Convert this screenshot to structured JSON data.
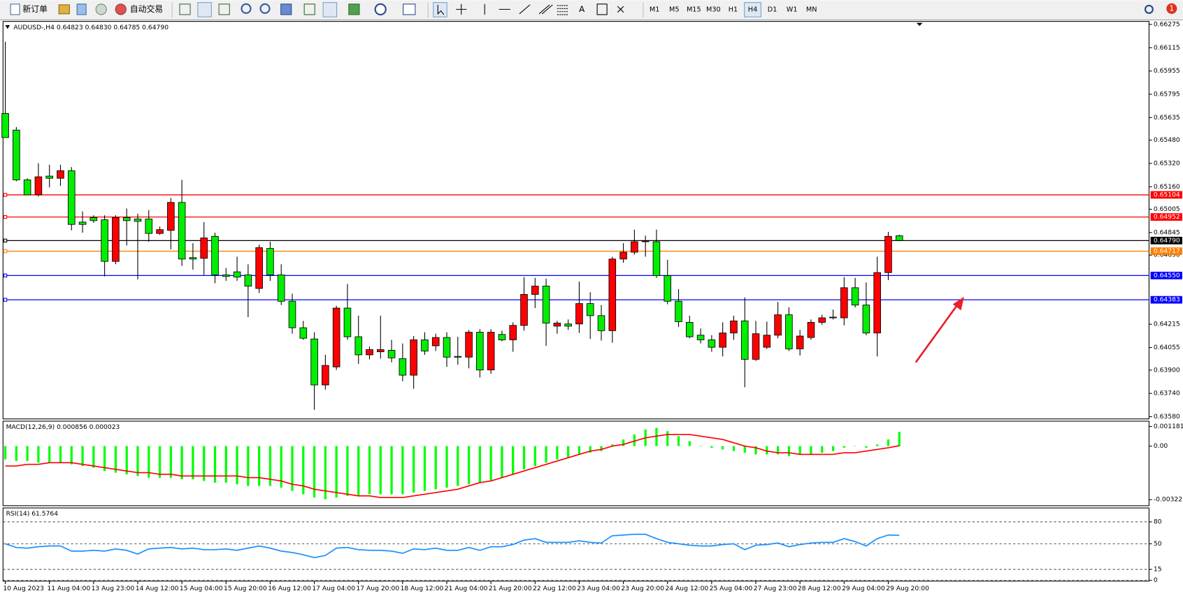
{
  "toolbar": {
    "new_order": "新订单",
    "auto_trading": "自动交易",
    "text_tool": "A",
    "timeframes": [
      "M1",
      "M5",
      "M15",
      "M30",
      "H1",
      "H4",
      "D1",
      "W1",
      "MN"
    ],
    "notifications": 1
  },
  "chart_data": [
    {
      "type": "candlestick",
      "title": "AUDUSD-,H4  0.64823 0.64830 0.64785 0.64790",
      "up_color": "#ff0000",
      "down_color": "#00ee00",
      "categories": [
        "10 Aug 2023",
        null,
        null,
        null,
        "11 Aug 04:00",
        null,
        null,
        null,
        "13 Aug 23:00",
        null,
        null,
        null,
        "14 Aug 12:00",
        null,
        null,
        null,
        "15 Aug 04:00",
        null,
        null,
        null,
        "15 Aug 20:00",
        null,
        null,
        null,
        "16 Aug 12:00",
        null,
        null,
        null,
        "17 Aug 04:00",
        null,
        null,
        null,
        "17 Aug 20:00",
        null,
        null,
        null,
        "18 Aug 12:00",
        null,
        null,
        null,
        "21 Aug 04:00",
        null,
        null,
        null,
        "21 Aug 20:00",
        null,
        null,
        null,
        "22 Aug 12:00",
        null,
        null,
        null,
        "23 Aug 04:00",
        null,
        null,
        null,
        "23 Aug 20:00",
        null,
        null,
        null,
        "24 Aug 12:00",
        null,
        null,
        null,
        "25 Aug 04:00",
        null,
        null,
        null,
        "27 Aug 23:00",
        null,
        null,
        null,
        "28 Aug 12:00",
        null,
        null,
        null,
        "29 Aug 04:00",
        null,
        null,
        null,
        "29 Aug 20:00",
        null
      ],
      "open": [
        0.65663,
        0.65549,
        0.65207,
        0.65104,
        0.65233,
        0.65218,
        0.6527,
        0.64917,
        0.64948,
        0.64933,
        0.64647,
        0.64948,
        0.64938,
        0.64938,
        0.64839,
        0.6486,
        0.65052,
        0.64673,
        0.64668,
        0.64819,
        0.64554,
        0.64575,
        0.64554,
        0.64461,
        0.64736,
        0.64554,
        0.64373,
        0.64191,
        0.64114,
        0.63798,
        0.63922,
        0.64326,
        0.64129,
        0.64005,
        0.64026,
        0.64036,
        0.63979,
        0.63865,
        0.64108,
        0.64067,
        0.64124,
        0.63994,
        0.63989,
        0.6416,
        0.63901,
        0.64145,
        0.64108,
        0.64207,
        0.6442,
        0.64477,
        0.64202,
        0.64217,
        0.64217,
        0.64357,
        0.64274,
        0.64171,
        0.64663,
        0.6471,
        0.64782,
        0.64782,
        0.64549,
        0.64373,
        0.64228,
        0.6414,
        0.64108,
        0.64057,
        0.64155,
        0.64238,
        0.63974,
        0.64057,
        0.6414,
        0.6428,
        0.64046,
        0.64124,
        0.64228,
        0.64264,
        0.64259,
        0.64466,
        0.64347,
        0.64155,
        0.6457,
        0.64823
      ],
      "high": [
        0.66156,
        0.6557,
        0.65218,
        0.65321,
        0.65311,
        0.65311,
        0.65295,
        0.6499,
        0.64964,
        0.64964,
        0.64964,
        0.6501,
        0.64974,
        0.65,
        0.64886,
        0.65083,
        0.65207,
        0.64772,
        0.64917,
        0.64844,
        0.64601,
        0.64679,
        0.64627,
        0.64762,
        0.64782,
        0.64627,
        0.64425,
        0.64238,
        0.6416,
        0.64005,
        0.64342,
        0.64492,
        0.64274,
        0.64062,
        0.64274,
        0.64108,
        0.64083,
        0.64134,
        0.6416,
        0.6415,
        0.6416,
        0.64129,
        0.64176,
        0.64181,
        0.64181,
        0.64171,
        0.64228,
        0.64539,
        0.64534,
        0.64528,
        0.64238,
        0.64248,
        0.64508,
        0.64435,
        0.64347,
        0.64679,
        0.64772,
        0.64865,
        0.64824,
        0.64865,
        0.64658,
        0.64456,
        0.64274,
        0.64186,
        0.6414,
        0.64228,
        0.64274,
        0.64399,
        0.64238,
        0.64233,
        0.64368,
        0.64331,
        0.64176,
        0.64248,
        0.6428,
        0.64316,
        0.64539,
        0.64534,
        0.64502,
        0.64679,
        0.6485,
        0.6483
      ],
      "low": [
        0.65498,
        0.65197,
        0.65104,
        0.65093,
        0.65155,
        0.65166,
        0.6486,
        0.64844,
        0.64912,
        0.64544,
        0.64627,
        0.64756,
        0.64523,
        0.64782,
        0.64829,
        0.6473,
        0.64616,
        0.6459,
        0.64554,
        0.64497,
        0.64513,
        0.64513,
        0.64264,
        0.6443,
        0.64513,
        0.64347,
        0.6415,
        0.64108,
        0.63627,
        0.63766,
        0.63901,
        0.64108,
        0.63943,
        0.63974,
        0.63979,
        0.63953,
        0.63823,
        0.63772,
        0.64005,
        0.64031,
        0.63922,
        0.63937,
        0.63912,
        0.63849,
        0.63875,
        0.64098,
        0.64026,
        0.64171,
        0.64326,
        0.64067,
        0.6415,
        0.64176,
        0.64155,
        0.64114,
        0.64103,
        0.64088,
        0.64637,
        0.64694,
        0.64679,
        0.64534,
        0.64352,
        0.64197,
        0.64119,
        0.64083,
        0.64026,
        0.63994,
        0.64108,
        0.63782,
        0.63963,
        0.64046,
        0.64119,
        0.64031,
        0.64,
        0.64108,
        0.64212,
        0.64248,
        0.64207,
        0.64331,
        0.6414,
        0.63994,
        0.64518,
        0.64785
      ],
      "close": [
        0.65498,
        0.65207,
        0.65104,
        0.65228,
        0.65218,
        0.6527,
        0.64901,
        0.64901,
        0.64927,
        0.64647,
        0.64948,
        0.64927,
        0.64922,
        0.64839,
        0.64865,
        0.65052,
        0.64663,
        0.64663,
        0.64808,
        0.64554,
        0.64544,
        0.64539,
        0.64477,
        0.64741,
        0.64554,
        0.64373,
        0.64191,
        0.64119,
        0.63798,
        0.63932,
        0.64326,
        0.64129,
        0.64005,
        0.64041,
        0.64041,
        0.63984,
        0.63865,
        0.64108,
        0.64031,
        0.64124,
        0.63989,
        0.63989,
        0.6416,
        0.63901,
        0.6416,
        0.64108,
        0.64207,
        0.6442,
        0.64477,
        0.64223,
        0.64223,
        0.64202,
        0.64357,
        0.64274,
        0.64171,
        0.64663,
        0.6471,
        0.64782,
        0.64788,
        0.64549,
        0.64373,
        0.64233,
        0.64129,
        0.64108,
        0.64057,
        0.64155,
        0.64238,
        0.63974,
        0.6415,
        0.6414,
        0.6428,
        0.64046,
        0.64134,
        0.64228,
        0.64259,
        0.64259,
        0.64466,
        0.64347,
        0.64155,
        0.6457,
        0.64819,
        0.6479
      ],
      "hlines": [
        {
          "value": 0.65104,
          "label": "0.65104",
          "color": "#ff0000"
        },
        {
          "value": 0.64952,
          "label": "0.64952",
          "color": "#ff0000"
        },
        {
          "value": 0.6479,
          "label": "0.64790",
          "color": "#000000"
        },
        {
          "value": 0.64717,
          "label": "0.64717",
          "color": "#ff8000"
        },
        {
          "value": 0.6455,
          "label": "0.64550",
          "color": "#0000ff"
        },
        {
          "value": 0.64383,
          "label": "0.64383",
          "color": "#0000ff"
        }
      ],
      "ylim": [
        0.6358,
        0.66275
      ],
      "yticks": [
        0.66275,
        0.66115,
        0.65955,
        0.65795,
        0.65635,
        {
          "value": 0.6548,
          "label": "0.65480"
        },
        {
          "value": 0.6532,
          "label": "0.65320"
        },
        {
          "value": 0.6516,
          "label": "0.65160"
        },
        0.65005,
        0.64845,
        {
          "value": 0.6469,
          "label": "0.64690"
        },
        0.64215,
        0.64055,
        {
          "value": 0.639,
          "label": "0.63900"
        },
        {
          "value": 0.6374,
          "label": "0.63740"
        },
        {
          "value": 0.6358,
          "label": "0.63580"
        }
      ],
      "grid": false
    },
    {
      "type": "bar",
      "title": "MACD(12,26,9) 0.000856 0.000023",
      "series": [
        {
          "type": "bar",
          "color": "#00ff00",
          "values": [
            -0.0008,
            -0.0009,
            -0.0009,
            -0.001,
            -0.001,
            -0.001,
            -0.0011,
            -0.0012,
            -0.0013,
            -0.0015,
            -0.0016,
            -0.0017,
            -0.0018,
            -0.0019,
            -0.0019,
            -0.0019,
            -0.002,
            -0.002,
            -0.0021,
            -0.0022,
            -0.0022,
            -0.0023,
            -0.0024,
            -0.0024,
            -0.0024,
            -0.0025,
            -0.0027,
            -0.0029,
            -0.0031,
            -0.0032,
            -0.0031,
            -0.003,
            -0.003,
            -0.0029,
            -0.0029,
            -0.0029,
            -0.0029,
            -0.0028,
            -0.0027,
            -0.0026,
            -0.0025,
            -0.0024,
            -0.0023,
            -0.0022,
            -0.0021,
            -0.0019,
            -0.0017,
            -0.0014,
            -0.0012,
            -0.001,
            -0.0008,
            -0.0007,
            -0.0005,
            -0.0004,
            -0.0003,
            0.0001,
            0.0004,
            0.0007,
            0.001,
            0.0011,
            0.0009,
            0.0006,
            0.0003,
            0,
            -0.0001,
            -0.0002,
            -0.0003,
            -0.0004,
            -0.0005,
            -0.0005,
            -0.0005,
            -0.0006,
            -0.0005,
            -0.0005,
            -0.0004,
            -0.0003,
            -0.0001,
            0,
            -0.0001,
            0.0001,
            0.0004,
            0.000856
          ]
        },
        {
          "type": "line",
          "color": "#ff0000",
          "values": [
            -0.0012,
            -0.0012,
            -0.0011,
            -0.0011,
            -0.001,
            -0.001,
            -0.001,
            -0.0011,
            -0.0012,
            -0.0013,
            -0.0014,
            -0.0015,
            -0.0016,
            -0.0016,
            -0.0017,
            -0.0017,
            -0.0018,
            -0.0018,
            -0.0018,
            -0.0018,
            -0.0018,
            -0.0018,
            -0.0019,
            -0.0019,
            -0.002,
            -0.0021,
            -0.0023,
            -0.0024,
            -0.0026,
            -0.0027,
            -0.0028,
            -0.0029,
            -0.003,
            -0.003,
            -0.0031,
            -0.0031,
            -0.0031,
            -0.003,
            -0.0029,
            -0.0028,
            -0.0027,
            -0.0026,
            -0.0024,
            -0.0022,
            -0.0021,
            -0.0019,
            -0.0017,
            -0.0015,
            -0.0013,
            -0.0011,
            -0.0009,
            -0.0007,
            -0.0005,
            -0.0003,
            -0.0002,
            0,
            0.0001,
            0.0003,
            0.0005,
            0.0006,
            0.0007,
            0.0007,
            0.0007,
            0.0006,
            0.0005,
            0.0004,
            0.0002,
            0,
            -0.0001,
            -0.0003,
            -0.0004,
            -0.0004,
            -0.0005,
            -0.0005,
            -0.0005,
            -0.0005,
            -0.0004,
            -0.0004,
            -0.0003,
            -0.0002,
            -0.0001,
            2.3e-05
          ]
        }
      ],
      "ylim": [
        -0.003225,
        0.001181
      ],
      "yticks": [
        0.001181,
        {
          "value": 0,
          "label": "0.00"
        },
        -0.003225
      ],
      "grid": false
    },
    {
      "type": "line",
      "title": "RSI(14) 61.5764",
      "color": "#1e90ff",
      "values": [
        50,
        45,
        44,
        46,
        47,
        47,
        40,
        40,
        41,
        40,
        43,
        41,
        36,
        43,
        44,
        45,
        43,
        44,
        42,
        42,
        43,
        41,
        44,
        47,
        44,
        40,
        38,
        35,
        31,
        34,
        44,
        45,
        42,
        41,
        41,
        40,
        37,
        43,
        42,
        44,
        41,
        41,
        45,
        41,
        46,
        46,
        49,
        55,
        57,
        52,
        52,
        52,
        54,
        52,
        51,
        61,
        62,
        63,
        63,
        57,
        52,
        50,
        48,
        47,
        47,
        49,
        50,
        42,
        48,
        49,
        51,
        46,
        49,
        51,
        52,
        52,
        57,
        53,
        47,
        57,
        62,
        61.5764
      ],
      "ylim": [
        0,
        100
      ],
      "yticks": [
        80,
        50,
        15,
        0
      ],
      "grid": true
    }
  ]
}
